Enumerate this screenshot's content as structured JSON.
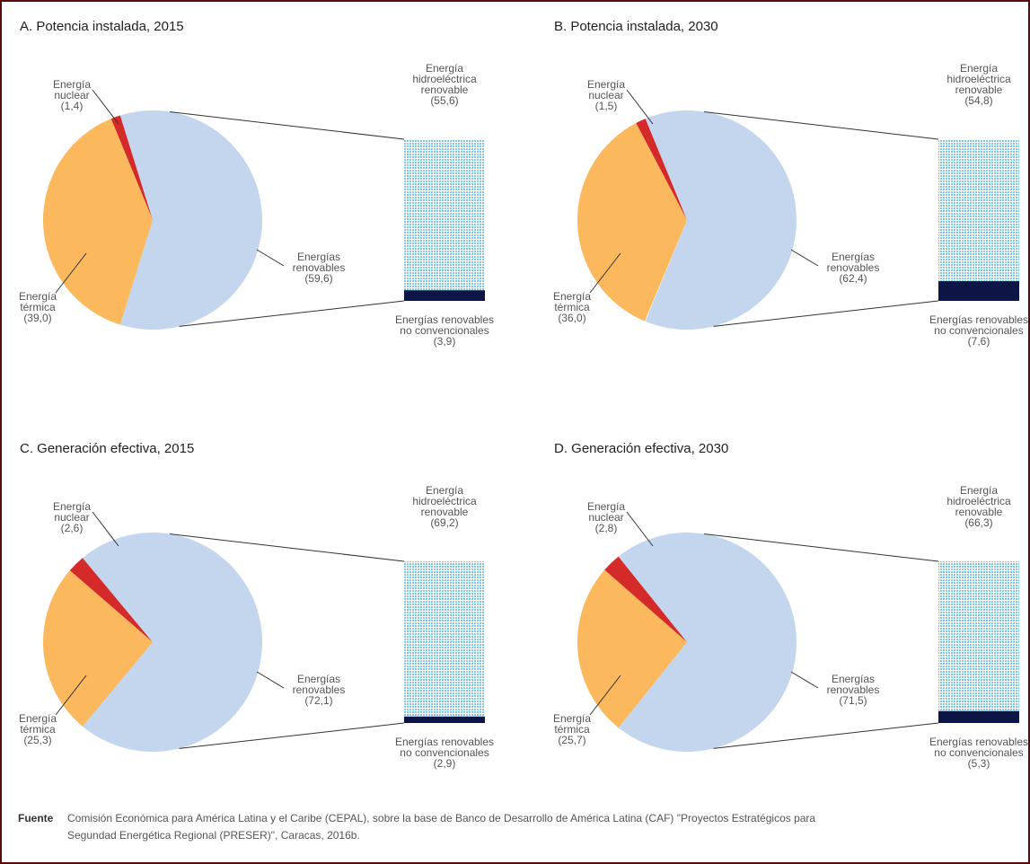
{
  "chart_data": [
    {
      "type": "pie-of-bar",
      "title": "A. Potencia instalada, 2015",
      "categories": [
        "Energía nuclear",
        "Energía térmica",
        "Energías renovables"
      ],
      "values": [
        1.4,
        39.0,
        59.6
      ],
      "value_labels": [
        "(1,4)",
        "(39,0)",
        "(59,6)"
      ],
      "colors": [
        "#d42a2a",
        "#fbb85c",
        "#c3d6ee"
      ],
      "bar_categories": [
        "Energía hidroeléctrica renovable",
        "Energías renovables no convencionales"
      ],
      "bar_values": [
        55.6,
        3.9
      ],
      "bar_value_labels": [
        "(55,6)",
        "(3,9)"
      ],
      "bar_colors": [
        "#7fcbe6",
        "#0d1446"
      ]
    },
    {
      "type": "pie-of-bar",
      "title": "B. Potencia instalada, 2030",
      "categories": [
        "Energía nuclear",
        "Energía térmica",
        "Energías renovables"
      ],
      "values": [
        1.5,
        36.0,
        62.4
      ],
      "value_labels": [
        "(1,5)",
        "(36,0)",
        "(62,4)"
      ],
      "colors": [
        "#d42a2a",
        "#fbb85c",
        "#c3d6ee"
      ],
      "bar_categories": [
        "Energía hidroeléctrica renovable",
        "Energías renovables no convencionales"
      ],
      "bar_values": [
        54.8,
        7.6
      ],
      "bar_value_labels": [
        "(54,8)",
        "(7,6)"
      ],
      "bar_colors": [
        "#7fcbe6",
        "#0d1446"
      ]
    },
    {
      "type": "pie-of-bar",
      "title": "C. Generación efectiva, 2015",
      "categories": [
        "Energía nuclear",
        "Energía térmica",
        "Energías renovables"
      ],
      "values": [
        2.6,
        25.3,
        72.1
      ],
      "value_labels": [
        "(2,6)",
        "(25,3)",
        "(72,1)"
      ],
      "colors": [
        "#d42a2a",
        "#fbb85c",
        "#c3d6ee"
      ],
      "bar_categories": [
        "Energía hidroeléctrica renovable",
        "Energías renovables no convencionales"
      ],
      "bar_values": [
        69.2,
        2.9
      ],
      "bar_value_labels": [
        "(69,2)",
        "(2,9)"
      ],
      "bar_colors": [
        "#7fcbe6",
        "#0d1446"
      ]
    },
    {
      "type": "pie-of-bar",
      "title": "D. Generación efectiva, 2030",
      "categories": [
        "Energía nuclear",
        "Energía térmica",
        "Energías renovables"
      ],
      "values": [
        2.8,
        25.7,
        71.5
      ],
      "value_labels": [
        "(2,8)",
        "(25,7)",
        "(71,5)"
      ],
      "colors": [
        "#d42a2a",
        "#fbb85c",
        "#c3d6ee"
      ],
      "bar_categories": [
        "Energía hidroeléctrica renovable",
        "Energías renovables no convencionales"
      ],
      "bar_values": [
        66.3,
        5.3
      ],
      "bar_value_labels": [
        "(66,3)",
        "(5,3)"
      ],
      "bar_colors": [
        "#7fcbe6",
        "#0d1446"
      ]
    }
  ],
  "source_label": "Fuente",
  "source": "Comisión Económica para América Latina y el Caribe (CEPAL), sobre la base de Banco de Desarrollo de América Latina (CAF) \"Proyectos Estratégicos para Segundad Energética Regional (PRESER)\", Caracas, 2016b."
}
